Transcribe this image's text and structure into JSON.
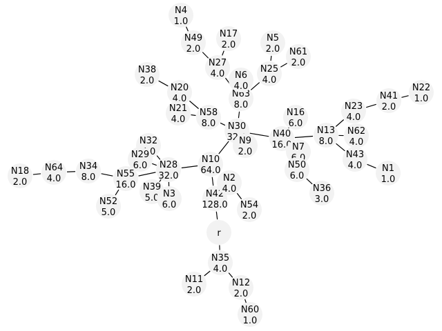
{
  "nodes": [
    {
      "id": "r",
      "label": "r",
      "value": ""
    },
    {
      "id": "N42",
      "label": "N42",
      "value": "128.0"
    },
    {
      "id": "N10",
      "label": "N10",
      "value": "64.0"
    },
    {
      "id": "N2",
      "label": "N2",
      "value": "4.0"
    },
    {
      "id": "N54",
      "label": "N54",
      "value": "2.0"
    },
    {
      "id": "N30",
      "label": "N30",
      "value": "32.0"
    },
    {
      "id": "N28",
      "label": "N28",
      "value": "32.0"
    },
    {
      "id": "N63",
      "label": "N63",
      "value": "8.0"
    },
    {
      "id": "N58",
      "label": "N58",
      "value": "8.0"
    },
    {
      "id": "N9",
      "label": "N9",
      "value": "2.0"
    },
    {
      "id": "N40",
      "label": "N40",
      "value": "16.0"
    },
    {
      "id": "N27",
      "label": "N27",
      "value": "4.0"
    },
    {
      "id": "N6",
      "label": "N6",
      "value": "4.0"
    },
    {
      "id": "N25",
      "label": "N25",
      "value": "4.0"
    },
    {
      "id": "N49",
      "label": "N49",
      "value": "2.0"
    },
    {
      "id": "N17",
      "label": "N17",
      "value": "2.0"
    },
    {
      "id": "N4",
      "label": "N4",
      "value": "1.0"
    },
    {
      "id": "N5",
      "label": "N5",
      "value": "2.0"
    },
    {
      "id": "N61",
      "label": "N61",
      "value": "2.0"
    },
    {
      "id": "N20",
      "label": "N20",
      "value": "4.0"
    },
    {
      "id": "N21",
      "label": "N21",
      "value": "4.0"
    },
    {
      "id": "N38",
      "label": "N38",
      "value": "2.0"
    },
    {
      "id": "N13",
      "label": "N13",
      "value": "8.0"
    },
    {
      "id": "N16",
      "label": "N16",
      "value": "6.0"
    },
    {
      "id": "N7",
      "label": "N7",
      "value": "6.0"
    },
    {
      "id": "N50",
      "label": "N50",
      "value": "6.0"
    },
    {
      "id": "N36",
      "label": "N36",
      "value": "3.0"
    },
    {
      "id": "N23",
      "label": "N23",
      "value": "4.0"
    },
    {
      "id": "N62",
      "label": "N62",
      "value": "4.0"
    },
    {
      "id": "N43",
      "label": "N43",
      "value": "4.0"
    },
    {
      "id": "N41",
      "label": "N41",
      "value": "2.0"
    },
    {
      "id": "N22",
      "label": "N22",
      "value": "1.0"
    },
    {
      "id": "N1",
      "label": "N1",
      "value": "1.0"
    },
    {
      "id": "N55",
      "label": "N55",
      "value": "16.0"
    },
    {
      "id": "N32",
      "label": "N32",
      "value": "5.0"
    },
    {
      "id": "N29",
      "label": "N29",
      "value": "6.0"
    },
    {
      "id": "N39",
      "label": "N39",
      "value": "5.0"
    },
    {
      "id": "N3",
      "label": "N3",
      "value": "6.0"
    },
    {
      "id": "N34",
      "label": "N34",
      "value": "8.0"
    },
    {
      "id": "N52",
      "label": "N52",
      "value": "5.0"
    },
    {
      "id": "N64",
      "label": "N64",
      "value": "4.0"
    },
    {
      "id": "N18",
      "label": "N18",
      "value": "2.0"
    },
    {
      "id": "N35",
      "label": "N35",
      "value": "4.0"
    },
    {
      "id": "N11",
      "label": "N11",
      "value": "2.0"
    },
    {
      "id": "N12",
      "label": "N12",
      "value": "2.0"
    },
    {
      "id": "N60",
      "label": "N60",
      "value": "1.0"
    }
  ],
  "edges": [
    [
      "r",
      "N42"
    ],
    [
      "r",
      "N35"
    ],
    [
      "N42",
      "N10"
    ],
    [
      "N42",
      "N2"
    ],
    [
      "N2",
      "N54"
    ],
    [
      "N10",
      "N30"
    ],
    [
      "N10",
      "N28"
    ],
    [
      "N30",
      "N63"
    ],
    [
      "N30",
      "N58"
    ],
    [
      "N30",
      "N9"
    ],
    [
      "N30",
      "N40"
    ],
    [
      "N63",
      "N27"
    ],
    [
      "N63",
      "N6"
    ],
    [
      "N63",
      "N25"
    ],
    [
      "N27",
      "N49"
    ],
    [
      "N27",
      "N17"
    ],
    [
      "N49",
      "N4"
    ],
    [
      "N25",
      "N5"
    ],
    [
      "N25",
      "N61"
    ],
    [
      "N58",
      "N20"
    ],
    [
      "N58",
      "N21"
    ],
    [
      "N20",
      "N38"
    ],
    [
      "N40",
      "N13"
    ],
    [
      "N40",
      "N16"
    ],
    [
      "N40",
      "N7"
    ],
    [
      "N40",
      "N50"
    ],
    [
      "N50",
      "N36"
    ],
    [
      "N13",
      "N23"
    ],
    [
      "N13",
      "N62"
    ],
    [
      "N13",
      "N43"
    ],
    [
      "N23",
      "N41"
    ],
    [
      "N41",
      "N22"
    ],
    [
      "N43",
      "N1"
    ],
    [
      "N28",
      "N55"
    ],
    [
      "N28",
      "N32"
    ],
    [
      "N28",
      "N29"
    ],
    [
      "N28",
      "N39"
    ],
    [
      "N28",
      "N3"
    ],
    [
      "N55",
      "N34"
    ],
    [
      "N55",
      "N52"
    ],
    [
      "N34",
      "N64"
    ],
    [
      "N64",
      "N18"
    ],
    [
      "N35",
      "N11"
    ],
    [
      "N35",
      "N12"
    ],
    [
      "N12",
      "N60"
    ]
  ]
}
